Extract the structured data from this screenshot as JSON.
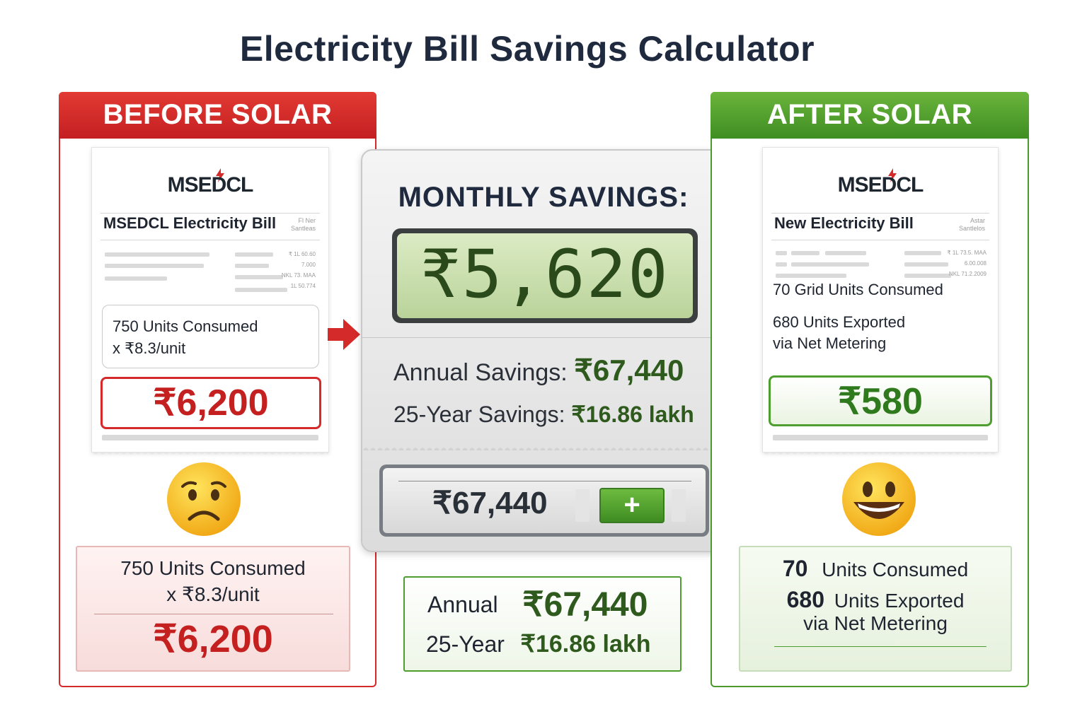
{
  "title": "Electricity Bill Savings Calculator",
  "before": {
    "header": "BEFORE SOLAR",
    "logo": "MSEDCL",
    "bill_title": "MSEDCL Electricity Bill",
    "bill_note": "Fl Ner Santleas",
    "nums": [
      "₹ 1L 60.60",
      "7.000",
      "NKL 73. MAA",
      "1L 50.774"
    ],
    "units_line1": "750 Units Consumed",
    "units_line2": "x ₹8.3/unit",
    "amount": "₹6,200",
    "summary_line1": "750 Units Consumed",
    "summary_line2": "x ₹8.3/unit",
    "summary_amount": "₹6,200",
    "mood": "sad-face"
  },
  "calculator": {
    "title": "MONTHLY SAVINGS:",
    "display": "₹5,620",
    "annual_label": "Annual Savings:",
    "annual_value": "₹67,440",
    "year25_label": "25-Year Savings:",
    "year25_value": "₹16.86 lakh",
    "mini_display": "₹67,440",
    "plus_label": "+"
  },
  "center_summary": {
    "annual_label": "Annual",
    "annual_value": "₹67,440",
    "year25_label": "25-Year",
    "year25_value": "₹16.86 lakh"
  },
  "after": {
    "header": "AFTER SOLAR",
    "logo": "MSEDCL",
    "bill_title": "New Electricity Bill",
    "bill_note": "Astar Santlelos",
    "nums": [
      "₹ 1L 73.5. MAA",
      "6.00.008",
      "NKL 71.2.2009"
    ],
    "grid_line": "70 Grid Units Consumed",
    "export_line1": "680 Units Exported",
    "export_line2": "via Net Metering",
    "amount": "₹580",
    "summary_num1": "70",
    "summary_text1": "Units Consumed",
    "summary_num2": "680",
    "summary_text2": "Units Exported",
    "summary_text3": "via Net Metering",
    "mood": "happy-face"
  },
  "colors": {
    "before_accent": "#d42a2a",
    "after_accent": "#4e9d2f",
    "title": "#1f2a3e",
    "lcd_bg": "#c8dfae"
  }
}
